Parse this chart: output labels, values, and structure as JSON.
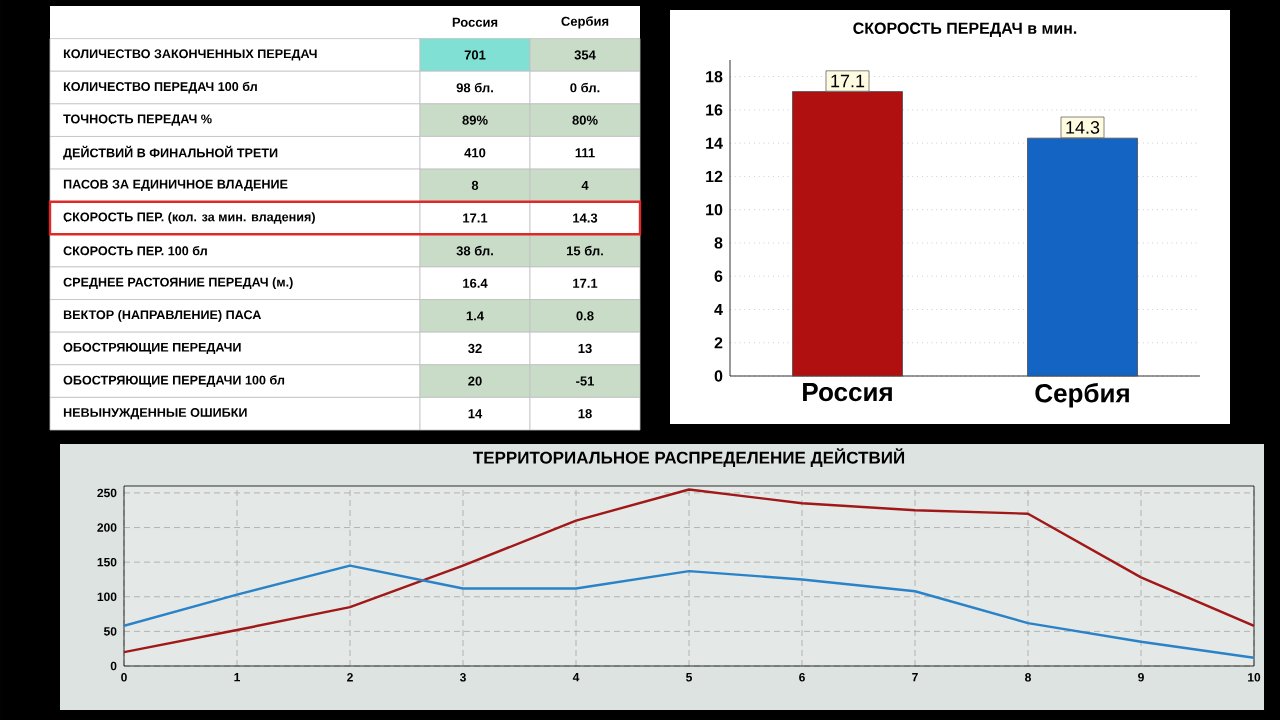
{
  "chart_data": [
    {
      "type": "other",
      "annotations": [
        "Россия",
        "Сербия",
        "КОЛИЧЕСТВО ЗАКОНЧЕННЫХ ПЕРЕДАЧ",
        "701",
        "354",
        "КОЛИЧЕСТВО ПЕРЕДАЧ 100 бл",
        "98 бл.",
        "0 бл.",
        "ТОЧНОСТЬ ПЕРЕДАЧ %",
        "89%",
        "80%",
        "ДЕЙСТВИЙ В ФИНАЛЬНОЙ ТРЕТИ",
        "410",
        "111",
        "ПАСОВ ЗА ЕДИНИЧНОЕ ВЛАДЕНИЕ",
        "8",
        "4",
        "СКОРОСТЬ ПЕР. (кол. за мин. владения)",
        "17.1",
        "14.3",
        "СКОРОСТЬ ПЕР. 100 бл",
        "38 бл.",
        "15 бл.",
        "СРЕДНЕЕ РАСТОЯНИЕ ПЕРЕДАЧ (м.)",
        "16.4",
        "17.1",
        "ВЕКТОР (НАПРАВЛЕНИЕ) ПАСА",
        "1.4",
        "0.8",
        "ОБОСТРЯЮЩИЕ ПЕРЕДАЧИ",
        "32",
        "13",
        "ОБОСТРЯЮЩИЕ ПЕРЕДАЧИ 100 бл",
        "20",
        "-51",
        "НЕВЫНУЖДЕННЫЕ ОШИБКИ",
        "14",
        "18"
      ]
    },
    {
      "type": "bar",
      "title": "СКОРОСТЬ ПЕРЕДАЧ в мин.",
      "categories": [
        "Россия",
        "Сербия"
      ],
      "values": [
        17.1,
        14.3
      ],
      "colors": [
        "#b01010",
        "#1464c4"
      ],
      "ylim": [
        0,
        19
      ],
      "yticks": [
        0,
        2,
        4,
        6,
        8,
        10,
        12,
        14,
        16,
        18
      ],
      "grid": "y",
      "data_labels": true
    },
    {
      "type": "line",
      "title": "ТЕРРИТОРИАЛЬНОЕ РАСПРЕДЕЛЕНИЕ ДЕЙСТВИЙ",
      "x": [
        0,
        1,
        2,
        3,
        4,
        5,
        6,
        7,
        8,
        9,
        10
      ],
      "series": [
        {
          "color": "#a01818",
          "values": [
            20,
            52,
            85,
            145,
            210,
            255,
            235,
            225,
            220,
            128,
            58
          ]
        },
        {
          "color": "#2a82c8",
          "values": [
            58,
            103,
            145,
            112,
            112,
            137,
            125,
            108,
            62,
            35,
            12
          ]
        }
      ],
      "xlim": [
        0,
        10
      ],
      "ylim": [
        0,
        260
      ],
      "xticks": [
        0,
        1,
        2,
        3,
        4,
        5,
        6,
        7,
        8,
        9,
        10
      ],
      "yticks": [
        0,
        50,
        100,
        150,
        200,
        250
      ],
      "grid": true,
      "marker": "none",
      "line_style": "solid"
    }
  ]
}
